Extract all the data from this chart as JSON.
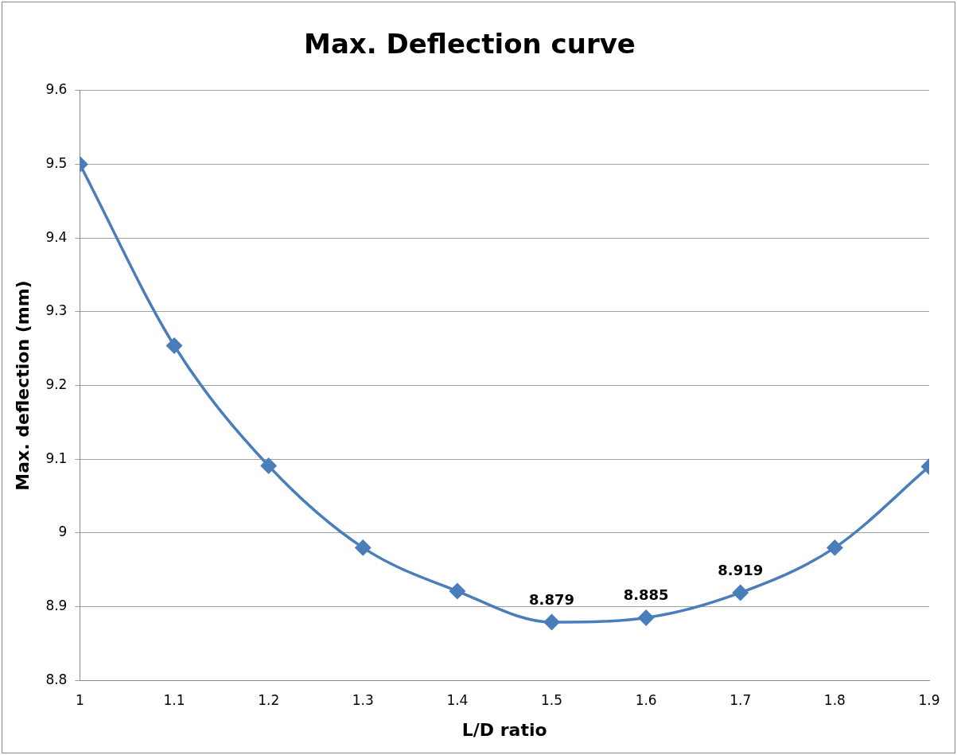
{
  "chart_data": {
    "type": "line",
    "title": "Max. Deflection curve",
    "xlabel": "L/D ratio",
    "ylabel": "Max. deflection (mm)",
    "x": [
      1,
      1.1,
      1.2,
      1.3,
      1.4,
      1.5,
      1.6,
      1.7,
      1.8,
      1.9
    ],
    "series": [
      {
        "color": "#4a7ebb",
        "values": [
          9.5,
          9.254,
          9.091,
          8.98,
          8.921,
          8.879,
          8.885,
          8.919,
          8.98,
          9.09
        ],
        "value_labels": [
          null,
          null,
          null,
          null,
          null,
          "8.879",
          "8.885",
          "8.919",
          null,
          null
        ]
      }
    ],
    "xlim": [
      1,
      1.9
    ],
    "xticks": [
      1,
      1.1,
      1.2,
      1.3,
      1.4,
      1.5,
      1.6,
      1.7,
      1.8,
      1.9
    ],
    "ylim": [
      8.8,
      9.6
    ],
    "yticks": [
      8.8,
      8.9,
      9,
      9.1,
      9.2,
      9.3,
      9.4,
      9.5,
      9.6
    ],
    "grid": "y",
    "legend": false,
    "marker": "diamond",
    "line_style": "solid"
  }
}
